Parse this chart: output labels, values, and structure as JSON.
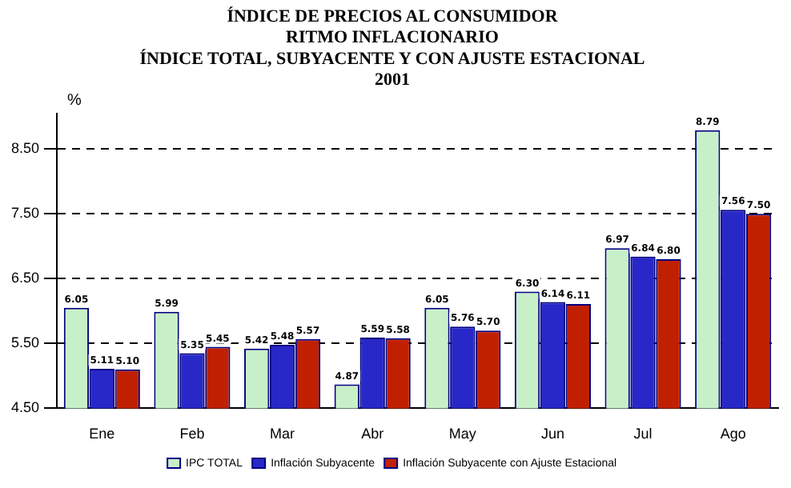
{
  "chart_data": {
    "type": "bar",
    "title": "ÍNDICE DE PRECIOS AL CONSUMIDOR",
    "subtitle": "RITMO INFLACIONARIO\nÍNDICE TOTAL, SUBYACENTE Y CON AJUSTE ESTACIONAL\n2001",
    "ylabel": "%",
    "categories": [
      "Ene",
      "Feb",
      "Mar",
      "Abr",
      "May",
      "Jun",
      "Jul",
      "Ago"
    ],
    "series": [
      {
        "name": "IPC TOTAL",
        "color": "#c8f0c8",
        "values": [
          6.05,
          5.99,
          5.42,
          4.87,
          6.05,
          6.3,
          6.97,
          8.79
        ],
        "value_labels": [
          "6.05",
          "5.99",
          "5.42",
          "4.87",
          "6.05",
          "6.30",
          "6.97",
          "8.79"
        ]
      },
      {
        "name": "Inflación Subyacente",
        "color": "#2828c8",
        "values": [
          5.11,
          5.35,
          5.48,
          5.59,
          5.76,
          6.14,
          6.84,
          7.56
        ],
        "value_labels": [
          "5.11",
          "5.35",
          "5.48",
          "5.59",
          "5.76",
          "6.14",
          "6.84",
          "7.56"
        ]
      },
      {
        "name": "Inflación Subyacente con Ajuste Estacional",
        "color": "#c02000",
        "values": [
          5.1,
          5.45,
          5.57,
          5.58,
          5.7,
          6.11,
          6.8,
          7.5
        ],
        "value_labels": [
          "5.10",
          "5.45",
          "5.57",
          "5.58",
          "5.70",
          "6.11",
          "6.80",
          "7.50"
        ]
      }
    ],
    "ylim": [
      4.5,
      9.05
    ],
    "yticks": [
      {
        "value": 4.5,
        "label": "4.50"
      },
      {
        "value": 5.5,
        "label": "5.50"
      },
      {
        "value": 6.5,
        "label": "6.50"
      },
      {
        "value": 7.5,
        "label": "7.50"
      },
      {
        "value": 8.5,
        "label": "8.50"
      }
    ],
    "grid": "y",
    "legend": "bottom"
  }
}
